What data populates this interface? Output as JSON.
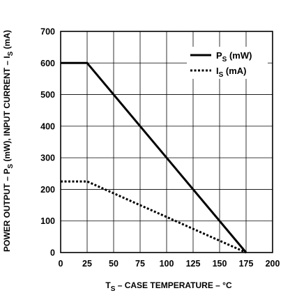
{
  "chart_data": {
    "type": "line",
    "xlabel": {
      "main": "T",
      "sub": "S",
      "rest": " – CASE TEMPERATURE – °C"
    },
    "ylabel": {
      "p1": "POWER OUTPUT – P",
      "s1": "S",
      "p2": " (mW), INPUT CURRENT – I",
      "s2": "S",
      "p3": " (mA)"
    },
    "xlim": [
      0,
      200
    ],
    "ylim": [
      0,
      700
    ],
    "x_ticks": [
      0,
      25,
      50,
      75,
      100,
      125,
      150,
      175,
      200
    ],
    "y_ticks": [
      0,
      100,
      200,
      300,
      400,
      500,
      600,
      700
    ],
    "grid": true,
    "legend_position": "top-right",
    "series": [
      {
        "legend": {
          "main": "P",
          "sub": "S",
          "rest": " (mW)"
        },
        "style": "solid",
        "color": "#000000",
        "points": [
          [
            0,
            600
          ],
          [
            25,
            600
          ],
          [
            175,
            0
          ]
        ]
      },
      {
        "legend": {
          "main": "I",
          "sub": "S",
          "rest": " (mA)"
        },
        "style": "dotted",
        "color": "#000000",
        "points": [
          [
            0,
            225
          ],
          [
            25,
            225
          ],
          [
            175,
            0
          ]
        ]
      }
    ]
  }
}
